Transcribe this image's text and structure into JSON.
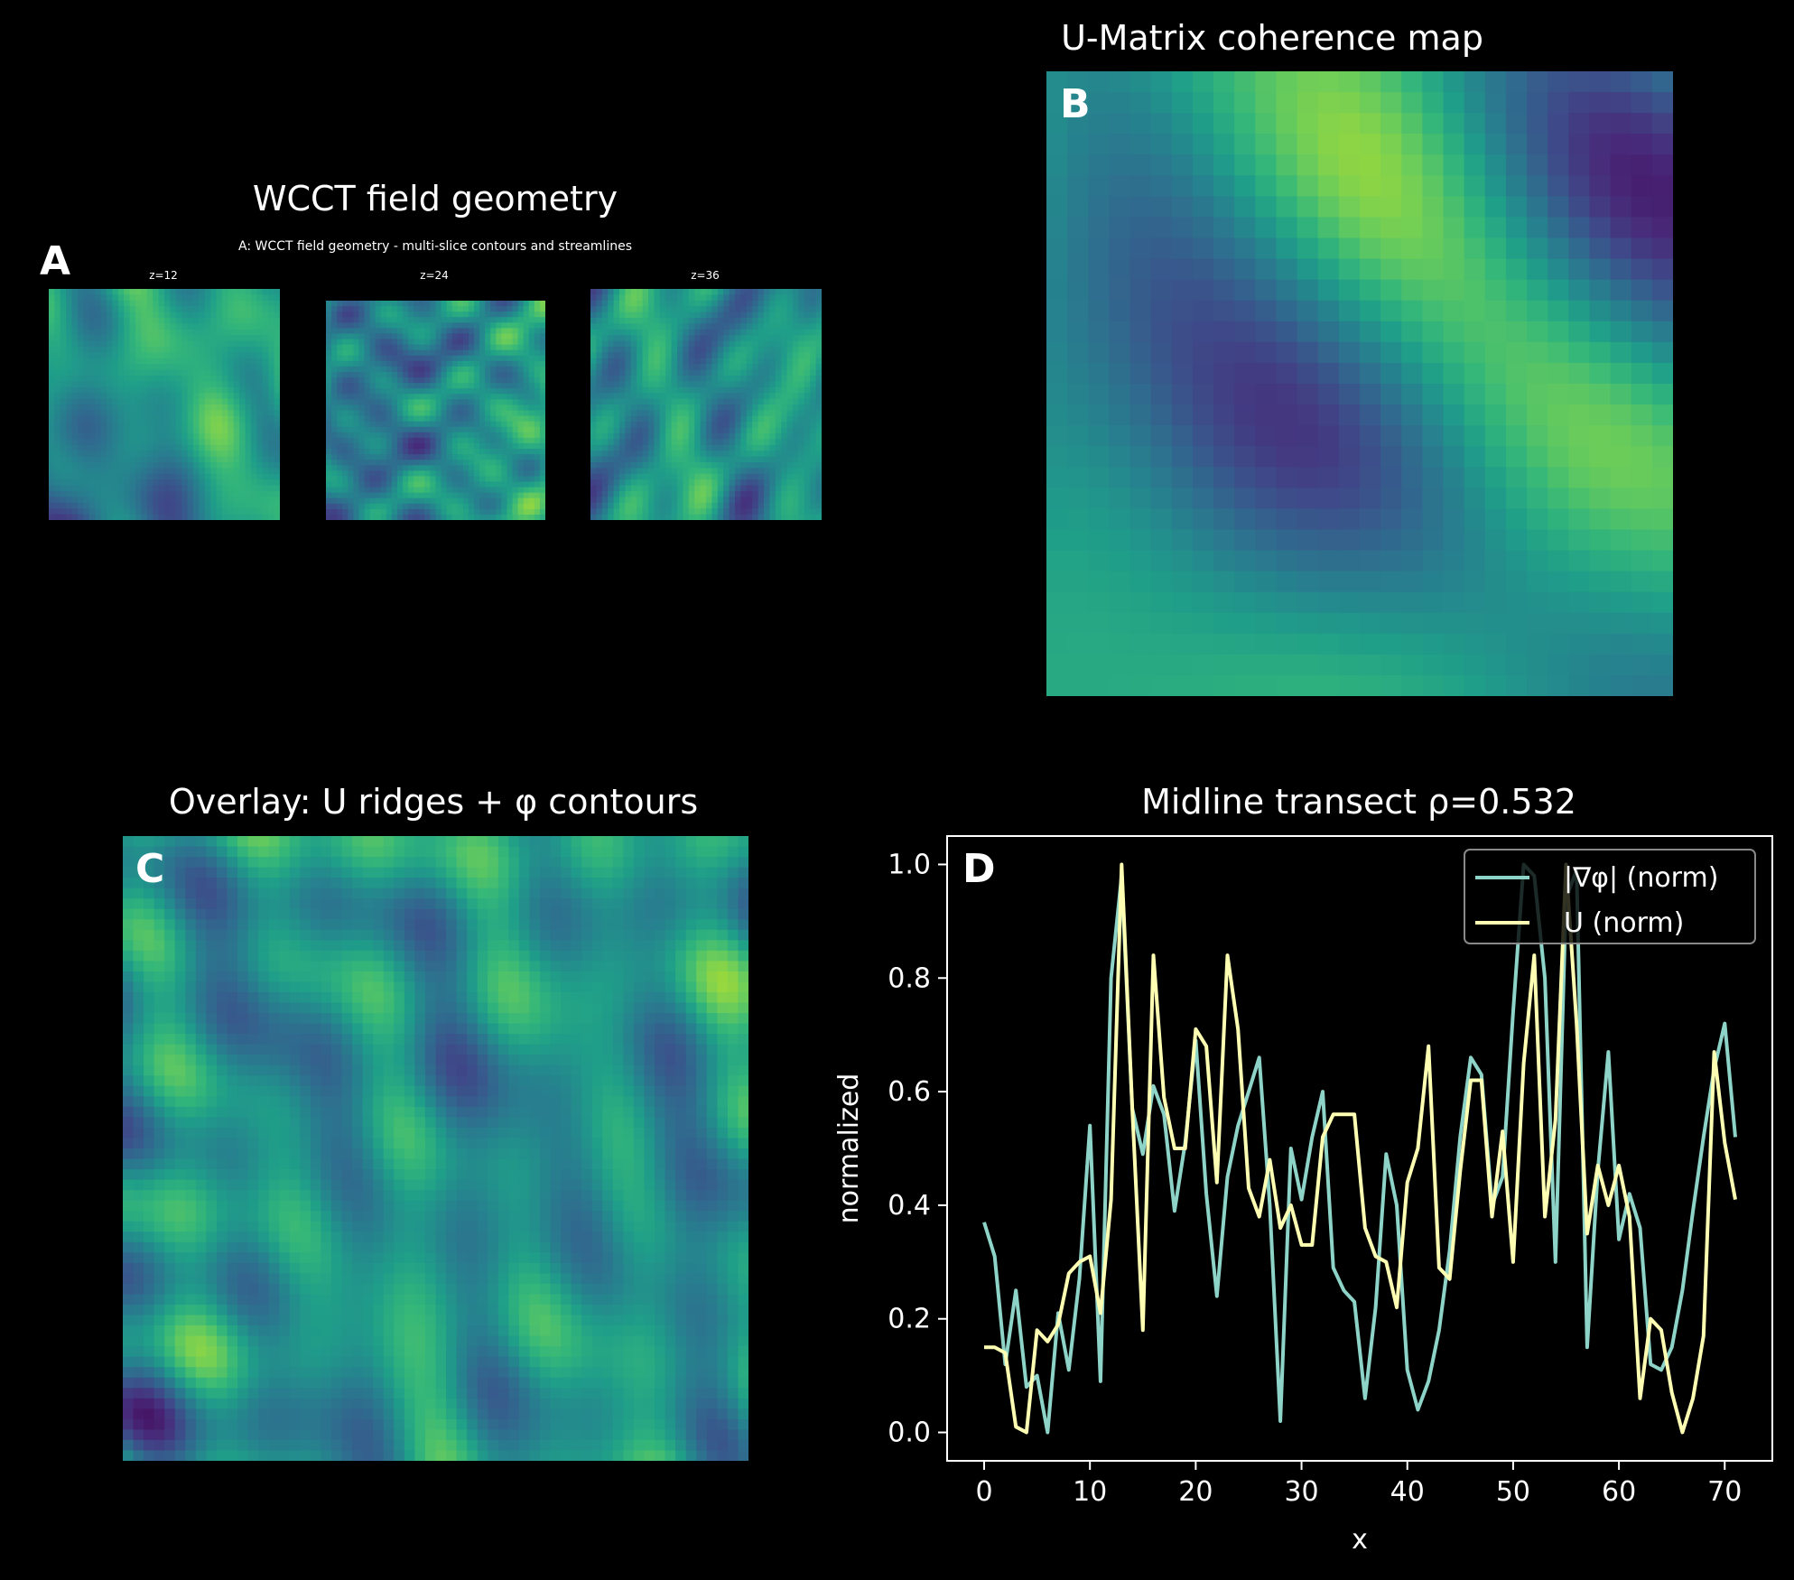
{
  "panels": {
    "a": {
      "letter": "A",
      "title": "WCCT field geometry",
      "subtitle": "A: WCCT field geometry - multi-slice contours and streamlines",
      "slices": [
        "z=12",
        "z=24",
        "z=36"
      ]
    },
    "b": {
      "letter": "B",
      "title": "U-Matrix coherence map"
    },
    "c": {
      "letter": "C",
      "title": "Overlay: U ridges + φ contours"
    },
    "d": {
      "letter": "D",
      "title": "Midline transect  ρ=0.532"
    }
  },
  "colors": {
    "background": "#000000",
    "series_grad": "#8dd3c7",
    "series_u": "#ffffb3",
    "viridis_dark": "#440154",
    "viridis_mid": "#21918c",
    "viridis_light": "#fde725"
  },
  "chart_data": [
    {
      "type": "heatmap",
      "title": "WCCT field geometry",
      "subtitle": "A: WCCT field geometry - multi-slice contours and streamlines",
      "panels": [
        "z=12",
        "z=24",
        "z=36"
      ],
      "colormap": "viridis"
    },
    {
      "type": "heatmap",
      "title": "U-Matrix coherence map",
      "colormap": "viridis"
    },
    {
      "type": "heatmap",
      "title": "Overlay: U ridges + φ contours",
      "colormap": "viridis"
    },
    {
      "type": "line",
      "title": "Midline transect  ρ=0.532",
      "xlabel": "x",
      "ylabel": "normalized",
      "xlim": [
        -3.5,
        74.5
      ],
      "ylim": [
        -0.05,
        1.05
      ],
      "xticks": [
        0,
        10,
        20,
        30,
        40,
        50,
        60,
        70
      ],
      "yticks": [
        0.0,
        0.2,
        0.4,
        0.6,
        0.8,
        1.0
      ],
      "legend_position": "top-right",
      "series": [
        {
          "name": "|∇φ| (norm)",
          "color": "#8dd3c7",
          "x": [
            0,
            1,
            2,
            3,
            4,
            5,
            6,
            7,
            8,
            9,
            10,
            11,
            12,
            13,
            14,
            15,
            16,
            17,
            18,
            19,
            20,
            21,
            22,
            23,
            24,
            25,
            26,
            27,
            28,
            29,
            30,
            31,
            32,
            33,
            34,
            35,
            36,
            37,
            38,
            39,
            40,
            41,
            42,
            43,
            44,
            45,
            46,
            47,
            48,
            49,
            50,
            51,
            52,
            53,
            54,
            55,
            56,
            57,
            58,
            59,
            60,
            61,
            62,
            63,
            64,
            65,
            66,
            67,
            68,
            69,
            70,
            71
          ],
          "values": [
            0.37,
            0.31,
            0.12,
            0.25,
            0.08,
            0.1,
            0.0,
            0.21,
            0.11,
            0.27,
            0.54,
            0.09,
            0.8,
            0.98,
            0.57,
            0.49,
            0.61,
            0.56,
            0.39,
            0.51,
            0.69,
            0.42,
            0.24,
            0.45,
            0.54,
            0.6,
            0.66,
            0.4,
            0.02,
            0.5,
            0.41,
            0.52,
            0.6,
            0.29,
            0.25,
            0.23,
            0.06,
            0.22,
            0.49,
            0.4,
            0.11,
            0.04,
            0.09,
            0.18,
            0.32,
            0.52,
            0.66,
            0.63,
            0.4,
            0.45,
            0.74,
            1.0,
            0.98,
            0.8,
            0.3,
            0.94,
            0.99,
            0.15,
            0.46,
            0.67,
            0.34,
            0.42,
            0.36,
            0.12,
            0.11,
            0.15,
            0.25,
            0.39,
            0.52,
            0.64,
            0.72,
            0.52
          ]
        },
        {
          "name": "U (norm)",
          "color": "#ffffb3",
          "x": [
            0,
            1,
            2,
            3,
            4,
            5,
            6,
            7,
            8,
            9,
            10,
            11,
            12,
            13,
            14,
            15,
            16,
            17,
            18,
            19,
            20,
            21,
            22,
            23,
            24,
            25,
            26,
            27,
            28,
            29,
            30,
            31,
            32,
            33,
            34,
            35,
            36,
            37,
            38,
            39,
            40,
            41,
            42,
            43,
            44,
            45,
            46,
            47,
            48,
            49,
            50,
            51,
            52,
            53,
            54,
            55,
            56,
            57,
            58,
            59,
            60,
            61,
            62,
            63,
            64,
            65,
            66,
            67,
            68,
            69,
            70,
            71
          ],
          "values": [
            0.15,
            0.15,
            0.14,
            0.01,
            0.0,
            0.18,
            0.16,
            0.19,
            0.28,
            0.3,
            0.31,
            0.21,
            0.41,
            1.0,
            0.57,
            0.18,
            0.84,
            0.59,
            0.5,
            0.5,
            0.71,
            0.68,
            0.44,
            0.84,
            0.71,
            0.43,
            0.38,
            0.48,
            0.36,
            0.4,
            0.33,
            0.33,
            0.52,
            0.56,
            0.56,
            0.56,
            0.36,
            0.31,
            0.3,
            0.22,
            0.44,
            0.5,
            0.68,
            0.29,
            0.27,
            0.46,
            0.62,
            0.62,
            0.38,
            0.53,
            0.3,
            0.65,
            0.84,
            0.38,
            0.55,
            1.0,
            0.72,
            0.35,
            0.47,
            0.4,
            0.47,
            0.38,
            0.06,
            0.2,
            0.18,
            0.07,
            0.0,
            0.06,
            0.17,
            0.67,
            0.51,
            0.41
          ]
        }
      ]
    }
  ]
}
